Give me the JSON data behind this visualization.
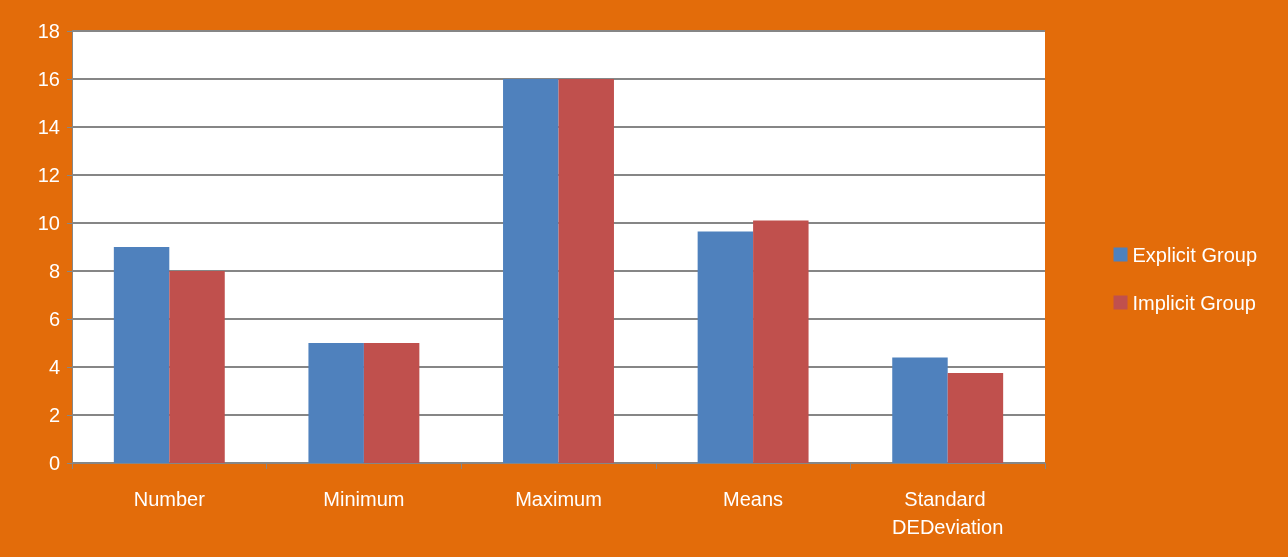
{
  "chart_data": {
    "type": "bar",
    "categories": [
      "Number",
      "Minimum",
      "Maximum",
      "Means",
      "Standard DEDeviation"
    ],
    "series": [
      {
        "name": "Explicit Group",
        "color": "#4f81bd",
        "values": [
          9,
          5,
          16,
          9.65,
          4.4
        ]
      },
      {
        "name": "Implicit Group",
        "color": "#c0504d",
        "values": [
          8,
          5,
          16,
          10.1,
          3.75
        ]
      }
    ],
    "ylim": [
      0,
      18
    ],
    "yticks": [
      0,
      2,
      4,
      6,
      8,
      10,
      12,
      14,
      16,
      18
    ],
    "grid": "y",
    "legend": "right"
  }
}
